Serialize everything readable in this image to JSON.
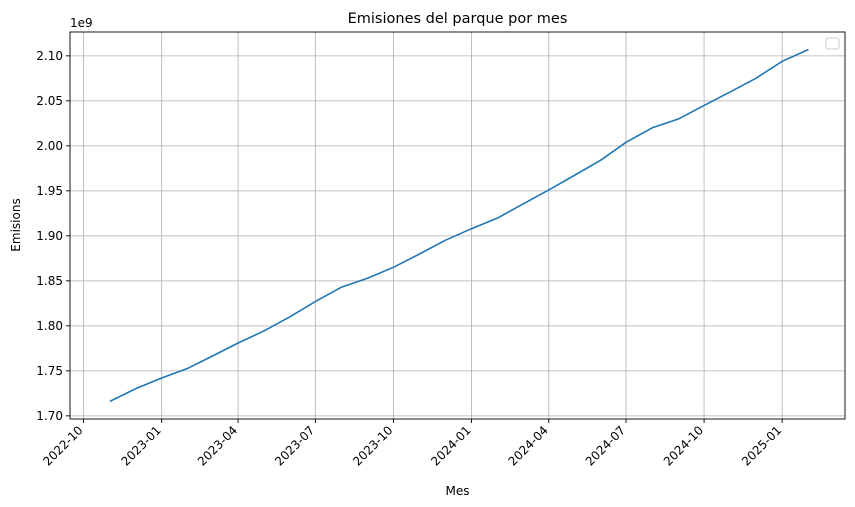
{
  "chart_data": {
    "type": "line",
    "title": "Emisiones del parque por mes",
    "xlabel": "Mes",
    "ylabel": "Emisions",
    "y_offset_label": "1e9",
    "grid": true,
    "legend": {
      "placement": "top-right",
      "entries": []
    },
    "x_ticks": [
      "2022-10",
      "2023-01",
      "2023-04",
      "2023-07",
      "2023-10",
      "2024-01",
      "2024-04",
      "2024-07",
      "2024-10",
      "2025-01"
    ],
    "y_ticks": [
      "1.70",
      "1.75",
      "1.80",
      "1.85",
      "1.90",
      "1.95",
      "2.00",
      "2.05",
      "2.10"
    ],
    "xlim": [
      "2022-09-15",
      "2025-03-16"
    ],
    "ylim": [
      1.6965,
      2.1265
    ],
    "series": [
      {
        "color": "#1f77b4",
        "x": [
          "2022-11-01",
          "2022-12-01",
          "2023-01-01",
          "2023-02-01",
          "2023-03-01",
          "2023-04-01",
          "2023-05-01",
          "2023-06-01",
          "2023-07-01",
          "2023-08-01",
          "2023-09-01",
          "2023-10-01",
          "2023-11-01",
          "2023-12-01",
          "2024-01-01",
          "2024-02-01",
          "2024-03-01",
          "2024-04-01",
          "2024-05-01",
          "2024-06-01",
          "2024-07-01",
          "2024-08-01",
          "2024-09-01",
          "2024-10-01",
          "2024-11-01",
          "2024-12-01",
          "2025-01-01",
          "2025-02-01"
        ],
        "values": [
          1.716,
          1.73,
          1.742,
          1.753,
          1.766,
          1.781,
          1.794,
          1.81,
          1.827,
          1.843,
          1.853,
          1.865,
          1.88,
          1.895,
          1.908,
          1.92,
          1.935,
          1.951,
          1.967,
          1.984,
          2.004,
          2.02,
          2.03,
          2.045,
          2.06,
          2.075,
          2.094,
          2.107
        ]
      }
    ]
  }
}
